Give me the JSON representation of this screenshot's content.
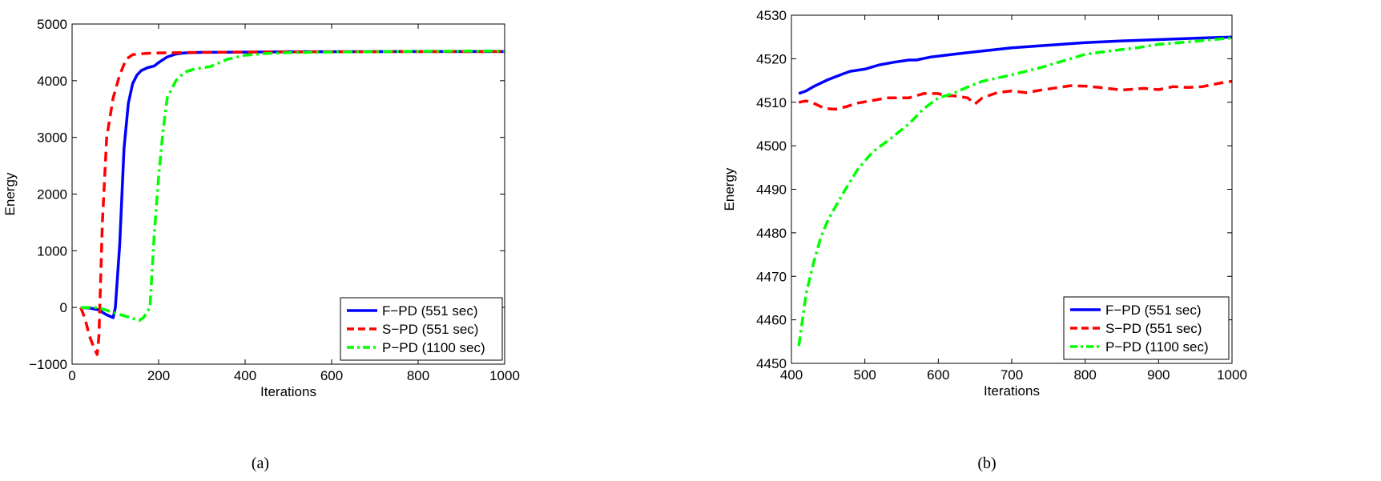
{
  "chart_data": [
    {
      "type": "line",
      "caption": "(a)",
      "xlabel": "Iterations",
      "ylabel": "Energy",
      "xlim": [
        0,
        1000
      ],
      "ylim": [
        -1000,
        5000
      ],
      "xticks": [
        0,
        200,
        400,
        600,
        800,
        1000
      ],
      "yticks": [
        -1000,
        0,
        1000,
        2000,
        3000,
        4000,
        5000
      ],
      "grid": false,
      "legend_position": "bottom-right",
      "series": [
        {
          "name": "F−PD (551 sec)",
          "color": "#0000ff",
          "style": "solid",
          "points": [
            [
              20,
              0
            ],
            [
              40,
              -10
            ],
            [
              60,
              -40
            ],
            [
              80,
              -130
            ],
            [
              95,
              -180
            ],
            [
              100,
              0
            ],
            [
              110,
              1100
            ],
            [
              120,
              2800
            ],
            [
              130,
              3600
            ],
            [
              140,
              3950
            ],
            [
              150,
              4100
            ],
            [
              160,
              4180
            ],
            [
              175,
              4230
            ],
            [
              190,
              4260
            ],
            [
              200,
              4320
            ],
            [
              220,
              4420
            ],
            [
              240,
              4470
            ],
            [
              260,
              4490
            ],
            [
              300,
              4500
            ],
            [
              400,
              4505
            ],
            [
              500,
              4510
            ],
            [
              600,
              4512
            ],
            [
              700,
              4513
            ],
            [
              800,
              4514
            ],
            [
              900,
              4514
            ],
            [
              1000,
              4515
            ]
          ]
        },
        {
          "name": "S−PD (551 sec)",
          "color": "#ff0000",
          "style": "dashed",
          "points": [
            [
              20,
              0
            ],
            [
              30,
              -200
            ],
            [
              40,
              -500
            ],
            [
              50,
              -700
            ],
            [
              58,
              -830
            ],
            [
              62,
              -500
            ],
            [
              70,
              1500
            ],
            [
              80,
              3000
            ],
            [
              95,
              3700
            ],
            [
              110,
              4100
            ],
            [
              125,
              4380
            ],
            [
              140,
              4460
            ],
            [
              170,
              4480
            ],
            [
              200,
              4490
            ],
            [
              300,
              4500
            ],
            [
              400,
              4505
            ],
            [
              500,
              4507
            ],
            [
              600,
              4510
            ],
            [
              700,
              4512
            ],
            [
              800,
              4513
            ],
            [
              900,
              4513
            ],
            [
              1000,
              4514
            ]
          ]
        },
        {
          "name": "P−PD (1100 sec)",
          "color": "#00ff00",
          "style": "dashdot",
          "points": [
            [
              20,
              0
            ],
            [
              60,
              0
            ],
            [
              100,
              -100
            ],
            [
              130,
              -170
            ],
            [
              155,
              -230
            ],
            [
              165,
              -180
            ],
            [
              180,
              0
            ],
            [
              190,
              1300
            ],
            [
              200,
              2300
            ],
            [
              210,
              3100
            ],
            [
              220,
              3700
            ],
            [
              240,
              4000
            ],
            [
              260,
              4150
            ],
            [
              280,
              4200
            ],
            [
              320,
              4250
            ],
            [
              360,
              4380
            ],
            [
              400,
              4450
            ],
            [
              450,
              4480
            ],
            [
              500,
              4495
            ],
            [
              600,
              4505
            ],
            [
              700,
              4512
            ],
            [
              800,
              4518
            ],
            [
              900,
              4522
            ],
            [
              1000,
              4524
            ]
          ]
        }
      ]
    },
    {
      "type": "line",
      "caption": "(b)",
      "xlabel": "Iterations",
      "ylabel": "Energy",
      "xlim": [
        400,
        1000
      ],
      "ylim": [
        4450,
        4530
      ],
      "xticks": [
        400,
        500,
        600,
        700,
        800,
        900,
        1000
      ],
      "yticks": [
        4450,
        4460,
        4470,
        4480,
        4490,
        4500,
        4510,
        4520,
        4530
      ],
      "grid": false,
      "legend_position": "bottom-right",
      "series": [
        {
          "name": "F−PD (551 sec)",
          "color": "#0000ff",
          "style": "solid",
          "points": [
            [
              410,
              4512
            ],
            [
              420,
              4512.6
            ],
            [
              430,
              4513.6
            ],
            [
              450,
              4515.2
            ],
            [
              470,
              4516.5
            ],
            [
              480,
              4517.1
            ],
            [
              500,
              4517.6
            ],
            [
              510,
              4518.1
            ],
            [
              520,
              4518.6
            ],
            [
              540,
              4519.2
            ],
            [
              560,
              4519.7
            ],
            [
              570,
              4519.7
            ],
            [
              590,
              4520.4
            ],
            [
              600,
              4520.6
            ],
            [
              620,
              4521
            ],
            [
              650,
              4521.6
            ],
            [
              700,
              4522.5
            ],
            [
              750,
              4523.1
            ],
            [
              800,
              4523.7
            ],
            [
              850,
              4524.1
            ],
            [
              900,
              4524.4
            ],
            [
              950,
              4524.7
            ],
            [
              1000,
              4525
            ]
          ]
        },
        {
          "name": "S−PD (551 sec)",
          "color": "#ff0000",
          "style": "dashed",
          "points": [
            [
              410,
              4510
            ],
            [
              420,
              4510.3
            ],
            [
              430,
              4509.8
            ],
            [
              445,
              4508.6
            ],
            [
              460,
              4508.4
            ],
            [
              475,
              4509
            ],
            [
              490,
              4509.8
            ],
            [
              510,
              4510.4
            ],
            [
              530,
              4511
            ],
            [
              560,
              4511
            ],
            [
              580,
              4512
            ],
            [
              600,
              4512
            ],
            [
              610,
              4511.5
            ],
            [
              620,
              4511.5
            ],
            [
              640,
              4511
            ],
            [
              650,
              4509.6
            ],
            [
              660,
              4511
            ],
            [
              680,
              4512.2
            ],
            [
              700,
              4512.6
            ],
            [
              720,
              4512.2
            ],
            [
              740,
              4512.8
            ],
            [
              780,
              4513.8
            ],
            [
              800,
              4513.7
            ],
            [
              820,
              4513.4
            ],
            [
              850,
              4512.8
            ],
            [
              880,
              4513.2
            ],
            [
              900,
              4512.9
            ],
            [
              920,
              4513.6
            ],
            [
              940,
              4513.4
            ],
            [
              960,
              4513.6
            ],
            [
              990,
              4514.6
            ],
            [
              1000,
              4514.8
            ]
          ]
        },
        {
          "name": "P−PD (1100 sec)",
          "color": "#00ff00",
          "style": "dashdot",
          "points": [
            [
              410,
              4454
            ],
            [
              415,
              4460
            ],
            [
              420,
              4466
            ],
            [
              430,
              4473
            ],
            [
              440,
              4479
            ],
            [
              450,
              4483
            ],
            [
              470,
              4489
            ],
            [
              490,
              4494.5
            ],
            [
              510,
              4498.5
            ],
            [
              530,
              4501
            ],
            [
              560,
              4505
            ],
            [
              580,
              4508.5
            ],
            [
              600,
              4511
            ],
            [
              620,
              4512
            ],
            [
              640,
              4513.5
            ],
            [
              660,
              4514.8
            ],
            [
              700,
              4516.3
            ],
            [
              740,
              4518
            ],
            [
              770,
              4519.5
            ],
            [
              800,
              4521
            ],
            [
              830,
              4521.7
            ],
            [
              870,
              4522.5
            ],
            [
              900,
              4523.3
            ],
            [
              950,
              4524
            ],
            [
              1000,
              4524.8
            ]
          ]
        }
      ]
    }
  ]
}
